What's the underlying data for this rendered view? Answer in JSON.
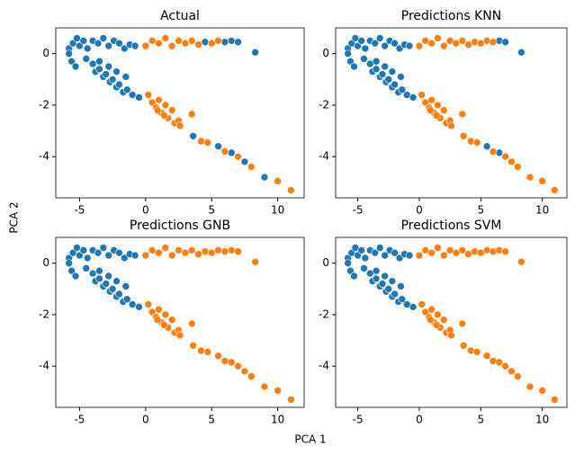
{
  "figure": {
    "xlabel": "PCA 1",
    "ylabel": "PCA 2"
  },
  "chart_data": [
    {
      "type": "scatter",
      "title": "Actual",
      "xlim": [
        -6.8,
        12
      ],
      "ylim": [
        -5.6,
        1.0
      ],
      "xticks": [
        -5,
        0,
        5,
        10
      ],
      "yticks": [
        0,
        -2,
        -4
      ],
      "series": [
        {
          "color": "#1f77b4",
          "x": [
            -5.8,
            -5.5,
            -5.2,
            -5,
            -4.7,
            -4.4,
            -4,
            -3.6,
            -3.2,
            -2.8,
            -2.4,
            -2,
            -1.6,
            -1.2,
            -0.8,
            -5.6,
            -5.3,
            -5.8,
            -4.5,
            -4,
            -3.8,
            -3.5,
            -3.2,
            -3,
            -2.7,
            -2.5,
            -2.2,
            -2,
            -1.7,
            -1.4,
            -1,
            -3.5,
            -2.8,
            -2.2,
            -1.5,
            -0.5,
            4.5,
            6,
            6.5,
            7,
            8.3,
            3.6,
            5.5,
            6.5,
            7.5,
            9
          ],
          "y": [
            0.2,
            0.4,
            0.6,
            0.3,
            0.5,
            0.2,
            0.5,
            0.4,
            0.6,
            0.3,
            0.5,
            0.4,
            0.2,
            0.35,
            0.3,
            -0.3,
            -0.5,
            0,
            -0.2,
            -0.4,
            -0.7,
            -0.6,
            -0.9,
            -0.8,
            -1.1,
            -1,
            -1.3,
            -1.2,
            -1.5,
            -1.4,
            -1.6,
            -0.3,
            -0.5,
            -0.7,
            -0.9,
            -1.7,
            0.45,
            0.45,
            0.5,
            0.45,
            0.05,
            -3.2,
            -3.6,
            -3.85,
            -4.2,
            -4.8
          ]
        },
        {
          "color": "#ff7f0e",
          "x": [
            0,
            0.5,
            1,
            1.5,
            2,
            2.5,
            3,
            3.5,
            4,
            5,
            5.5,
            0.2,
            0.5,
            0.8,
            1,
            1.2,
            1.5,
            1.7,
            2,
            2.2,
            2.5,
            1.4,
            0.9,
            2.6,
            3.5,
            4.2,
            4.7,
            6,
            7,
            8,
            10,
            11
          ],
          "y": [
            0.3,
            0.5,
            0.4,
            0.6,
            0.3,
            0.5,
            0.4,
            0.5,
            0.35,
            0.4,
            0.5,
            -1.6,
            -1.9,
            -2.1,
            -1.8,
            -2.3,
            -2,
            -2.5,
            -2.2,
            -2.7,
            -2.6,
            -2.4,
            -2.2,
            -2.8,
            -2.35,
            -3.4,
            -3.45,
            -3.8,
            -4,
            -4.4,
            -4.95,
            -5.3
          ]
        }
      ]
    },
    {
      "type": "scatter",
      "title": "Predictions KNN",
      "xlim": [
        -6.8,
        12
      ],
      "ylim": [
        -5.6,
        1.0
      ],
      "xticks": [
        -5,
        0,
        5,
        10
      ],
      "yticks": [
        0,
        -2,
        -4
      ],
      "series": [
        {
          "color": "#1f77b4",
          "x": [
            -5.8,
            -5.5,
            -5.2,
            -5,
            -4.7,
            -4.4,
            -4,
            -3.6,
            -3.2,
            -2.8,
            -2.4,
            -2,
            -1.6,
            -1.2,
            -0.8,
            -5.6,
            -5.3,
            -5.8,
            -4.5,
            -4,
            -3.8,
            -3.5,
            -3.2,
            -3,
            -2.7,
            -2.5,
            -2.2,
            -2,
            -1.7,
            -1.4,
            -1,
            -3.5,
            -2.8,
            -2.2,
            -1.5,
            -0.5,
            6.5,
            7,
            8.3,
            5.5,
            6.5
          ],
          "y": [
            0.2,
            0.4,
            0.6,
            0.3,
            0.5,
            0.2,
            0.5,
            0.4,
            0.6,
            0.3,
            0.5,
            0.4,
            0.2,
            0.35,
            0.3,
            -0.3,
            -0.5,
            0,
            -0.2,
            -0.4,
            -0.7,
            -0.6,
            -0.9,
            -0.8,
            -1.1,
            -1,
            -1.3,
            -1.2,
            -1.5,
            -1.4,
            -1.6,
            -0.3,
            -0.5,
            -0.7,
            -0.9,
            -1.7,
            0.5,
            0.45,
            0.05,
            -3.6,
            -3.85
          ]
        },
        {
          "color": "#ff7f0e",
          "x": [
            0,
            0.5,
            1,
            1.5,
            2,
            2.5,
            3,
            3.5,
            4,
            4.5,
            5,
            5.5,
            6,
            0.2,
            0.5,
            0.8,
            1,
            1.2,
            1.5,
            1.7,
            2,
            2.2,
            2.5,
            1.4,
            0.9,
            2.6,
            3.5,
            3.6,
            4.2,
            4.7,
            6,
            7,
            7.5,
            8,
            9,
            10,
            11
          ],
          "y": [
            0.3,
            0.5,
            0.4,
            0.6,
            0.3,
            0.5,
            0.4,
            0.5,
            0.35,
            0.45,
            0.4,
            0.5,
            0.45,
            -1.6,
            -1.9,
            -2.1,
            -1.8,
            -2.3,
            -2,
            -2.5,
            -2.2,
            -2.7,
            -2.6,
            -2.4,
            -2.2,
            -2.8,
            -2.35,
            -3.2,
            -3.4,
            -3.45,
            -3.8,
            -4,
            -4.2,
            -4.4,
            -4.8,
            -4.95,
            -5.3
          ]
        }
      ]
    },
    {
      "type": "scatter",
      "title": "Predictions GNB",
      "xlim": [
        -6.8,
        12
      ],
      "ylim": [
        -5.6,
        1.0
      ],
      "xticks": [
        -5,
        0,
        5,
        10
      ],
      "yticks": [
        0,
        -2,
        -4
      ],
      "series": [
        {
          "color": "#1f77b4",
          "x": [
            -5.8,
            -5.5,
            -5.2,
            -5,
            -4.7,
            -4.4,
            -4,
            -3.6,
            -3.2,
            -2.8,
            -2.4,
            -2,
            -1.6,
            -1.2,
            -0.8,
            -5.6,
            -5.3,
            -5.8,
            -4.5,
            -4,
            -3.8,
            -3.5,
            -3.2,
            -3,
            -2.7,
            -2.5,
            -2.2,
            -2,
            -1.7,
            -1.4,
            -1,
            -3.5,
            -2.8,
            -2.2,
            -1.5,
            -0.5
          ],
          "y": [
            0.2,
            0.4,
            0.6,
            0.3,
            0.5,
            0.2,
            0.5,
            0.4,
            0.6,
            0.3,
            0.5,
            0.4,
            0.2,
            0.35,
            0.3,
            -0.3,
            -0.5,
            0,
            -0.2,
            -0.4,
            -0.7,
            -0.6,
            -0.9,
            -0.8,
            -1.1,
            -1,
            -1.3,
            -1.2,
            -1.5,
            -1.4,
            -1.6,
            -0.3,
            -0.5,
            -0.7,
            -0.9,
            -1.7
          ]
        },
        {
          "color": "#ff7f0e",
          "x": [
            0,
            0.5,
            1,
            1.5,
            2,
            2.5,
            3,
            3.5,
            4,
            4.5,
            5,
            5.5,
            6,
            6.5,
            7,
            8.3,
            0.2,
            0.5,
            0.8,
            1,
            1.2,
            1.5,
            1.7,
            2,
            2.2,
            2.5,
            1.4,
            0.9,
            2.6,
            3.5,
            3.6,
            4.2,
            4.7,
            5.5,
            6,
            6.5,
            7,
            7.5,
            8,
            9,
            10,
            11
          ],
          "y": [
            0.3,
            0.5,
            0.4,
            0.6,
            0.3,
            0.5,
            0.4,
            0.5,
            0.35,
            0.45,
            0.4,
            0.5,
            0.45,
            0.5,
            0.45,
            0.05,
            -1.6,
            -1.9,
            -2.1,
            -1.8,
            -2.3,
            -2,
            -2.5,
            -2.2,
            -2.7,
            -2.6,
            -2.4,
            -2.2,
            -2.8,
            -2.35,
            -3.2,
            -3.4,
            -3.45,
            -3.6,
            -3.8,
            -3.85,
            -4,
            -4.2,
            -4.4,
            -4.8,
            -4.95,
            -5.3
          ]
        }
      ]
    },
    {
      "type": "scatter",
      "title": "Predictions SVM",
      "xlim": [
        -6.8,
        12
      ],
      "ylim": [
        -5.6,
        1.0
      ],
      "xticks": [
        -5,
        0,
        5,
        10
      ],
      "yticks": [
        0,
        -2,
        -4
      ],
      "series": [
        {
          "color": "#1f77b4",
          "x": [
            -5.8,
            -5.5,
            -5.2,
            -5,
            -4.7,
            -4.4,
            -4,
            -3.6,
            -3.2,
            -2.8,
            -2.4,
            -2,
            -1.6,
            -1.2,
            -0.8,
            -5.6,
            -5.3,
            -5.8,
            -4.5,
            -4,
            -3.8,
            -3.5,
            -3.2,
            -3,
            -2.7,
            -2.5,
            -2.2,
            -2,
            -1.7,
            -1.4,
            -1,
            -3.5,
            -2.8,
            -2.2,
            -1.5,
            -0.5
          ],
          "y": [
            0.2,
            0.4,
            0.6,
            0.3,
            0.5,
            0.2,
            0.5,
            0.4,
            0.6,
            0.3,
            0.5,
            0.4,
            0.2,
            0.35,
            0.3,
            -0.3,
            -0.5,
            0,
            -0.2,
            -0.4,
            -0.7,
            -0.6,
            -0.9,
            -0.8,
            -1.1,
            -1,
            -1.3,
            -1.2,
            -1.5,
            -1.4,
            -1.6,
            -0.3,
            -0.5,
            -0.7,
            -0.9,
            -1.7
          ]
        },
        {
          "color": "#ff7f0e",
          "x": [
            0,
            0.5,
            1,
            1.5,
            2,
            2.5,
            3,
            3.5,
            4,
            4.5,
            5,
            5.5,
            6,
            6.5,
            7,
            8.3,
            0.2,
            0.5,
            0.8,
            1,
            1.2,
            1.5,
            1.7,
            2,
            2.2,
            2.5,
            1.4,
            0.9,
            2.6,
            3.5,
            3.6,
            4.2,
            4.7,
            5.5,
            6,
            6.5,
            7,
            7.5,
            8,
            9,
            10,
            11
          ],
          "y": [
            0.3,
            0.5,
            0.4,
            0.6,
            0.3,
            0.5,
            0.4,
            0.5,
            0.35,
            0.45,
            0.4,
            0.5,
            0.45,
            0.5,
            0.45,
            0.05,
            -1.6,
            -1.9,
            -2.1,
            -1.8,
            -2.3,
            -2,
            -2.5,
            -2.2,
            -2.7,
            -2.6,
            -2.4,
            -2.2,
            -2.8,
            -2.35,
            -3.2,
            -3.4,
            -3.45,
            -3.6,
            -3.8,
            -3.85,
            -4,
            -4.2,
            -4.4,
            -4.8,
            -4.95,
            -5.3
          ]
        }
      ]
    }
  ]
}
